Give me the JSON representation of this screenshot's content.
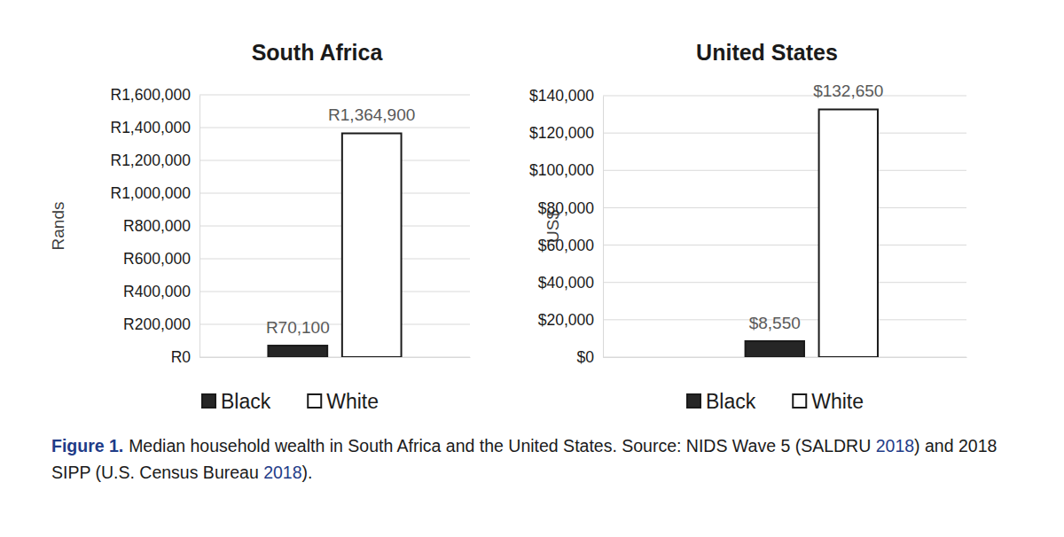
{
  "chart_data": [
    {
      "type": "bar",
      "title": "South Africa",
      "y_label": "Rands",
      "categories": [
        null
      ],
      "series": [
        {
          "name": "Black",
          "color": "#262626",
          "values": [
            70100
          ],
          "value_labels": [
            "R70,100"
          ]
        },
        {
          "name": "White",
          "color": "#ffffff",
          "values": [
            1364900
          ],
          "value_labels": [
            "R1,364,900"
          ]
        }
      ],
      "ylim": [
        0,
        1600000
      ],
      "yticks": [
        {
          "value": 0,
          "label": "R0"
        },
        {
          "value": 200000,
          "label": "R200,000"
        },
        {
          "value": 400000,
          "label": "R400,000"
        },
        {
          "value": 600000,
          "label": "R600,000"
        },
        {
          "value": 800000,
          "label": "R800,000"
        },
        {
          "value": 1000000,
          "label": "R1,000,000"
        },
        {
          "value": 1200000,
          "label": "R1,200,000"
        },
        {
          "value": 1400000,
          "label": "R1,400,000"
        },
        {
          "value": 1600000,
          "label": "R1,600,000"
        }
      ],
      "grid": true,
      "legend": "bottom",
      "data_labels": true
    },
    {
      "type": "bar",
      "title": "United States",
      "y_label": "US$",
      "categories": [
        null
      ],
      "series": [
        {
          "name": "Black",
          "color": "#262626",
          "values": [
            8550
          ],
          "value_labels": [
            "$8,550"
          ]
        },
        {
          "name": "White",
          "color": "#ffffff",
          "values": [
            132650
          ],
          "value_labels": [
            "$132,650"
          ]
        }
      ],
      "ylim": [
        0,
        140000
      ],
      "yticks": [
        {
          "value": 0,
          "label": "$0"
        },
        {
          "value": 20000,
          "label": "$20,000"
        },
        {
          "value": 40000,
          "label": "$40,000"
        },
        {
          "value": 60000,
          "label": "$60,000"
        },
        {
          "value": 80000,
          "label": "$80,000"
        },
        {
          "value": 100000,
          "label": "$100,000"
        },
        {
          "value": 120000,
          "label": "$120,000"
        },
        {
          "value": 140000,
          "label": "$140,000"
        }
      ],
      "grid": true,
      "legend": "bottom",
      "data_labels": true
    }
  ],
  "caption": {
    "label": "Figure 1.",
    "text": [
      "Median household wealth in South Africa and the United States. Source: NIDS Wave 5 (SALDRU ",
      "2018",
      ") and 2018 SIPP (U.S. Census Bureau ",
      "2018",
      ")."
    ]
  }
}
